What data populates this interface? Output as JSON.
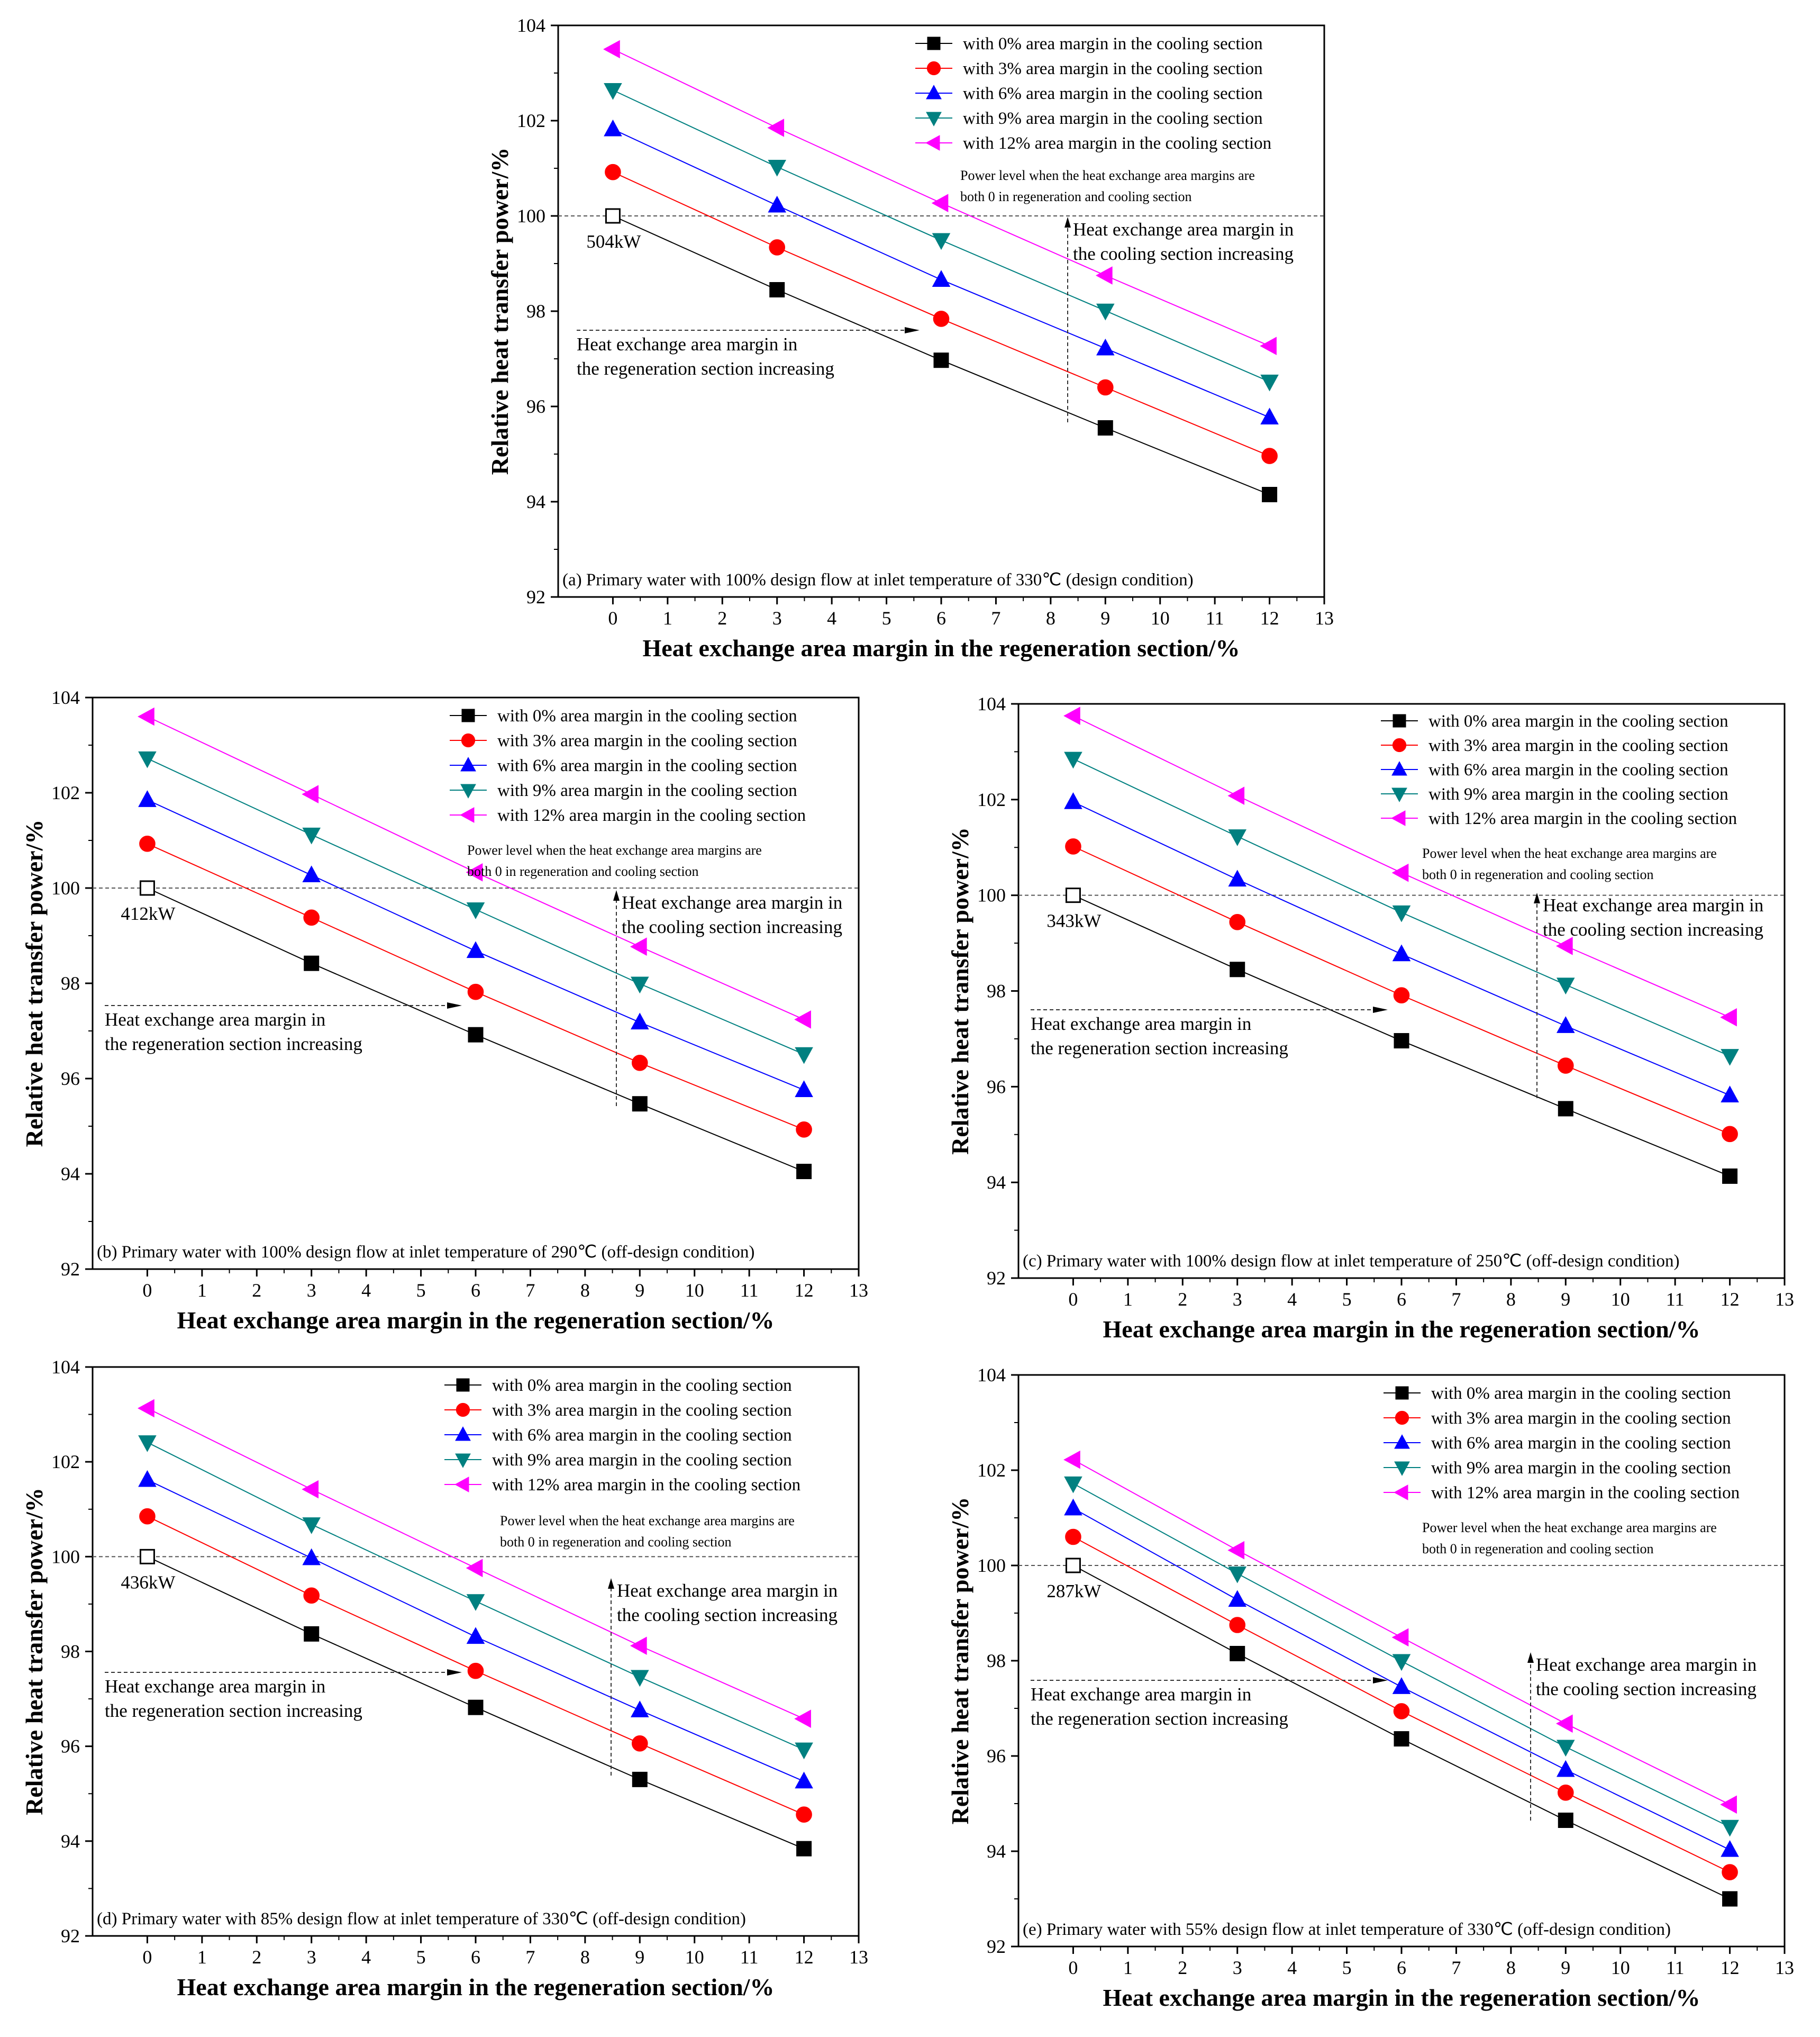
{
  "common": {
    "xlabel": "Heat exchange area margin in the regeneration section/%",
    "ylabel": "Relative heat transfer power/%",
    "xticks": [
      "0",
      "1",
      "2",
      "3",
      "4",
      "5",
      "6",
      "7",
      "8",
      "9",
      "10",
      "11",
      "12",
      "13"
    ],
    "yticks": [
      "92",
      "94",
      "96",
      "98",
      "100",
      "102",
      "104"
    ],
    "legend": [
      "with 0% area margin in the cooling section",
      "with 3% area margin in the cooling section",
      "with 6% area margin in the cooling section",
      "with 9% area margin in the cooling section",
      "with 12% area margin in the cooling section"
    ],
    "power_note_line1": "Power level when the heat exchange area margins are",
    "power_note_line2": "both 0 in regeneration and cooling section",
    "cooling_note_line1": "Heat exchange area margin in",
    "cooling_note_line2": "the cooling section increasing",
    "regen_note_line1": "Heat exchange area margin in",
    "regen_note_line2": "the regeneration section increasing",
    "colors": [
      "#000000",
      "#ff0000",
      "#0000ff",
      "#008080",
      "#ff00ff"
    ],
    "markers": [
      "square",
      "circle",
      "triangle-up",
      "triangle-down",
      "triangle-left"
    ]
  },
  "chart_data": [
    {
      "id": "a",
      "type": "line",
      "caption": "(a) Primary water with 100% design flow at inlet temperature of 330℃ (design condition)",
      "base_label": "504kW",
      "xlabel": "Heat exchange area margin in the regeneration section/%",
      "ylabel": "Relative heat transfer power/%",
      "xlim": [
        -1,
        13
      ],
      "ylim": [
        92,
        104
      ],
      "x": [
        0,
        3,
        6,
        9,
        12
      ],
      "series": [
        {
          "name": "with 0% area margin in the cooling section",
          "values": [
            100.0,
            98.45,
            96.97,
            95.55,
            94.15
          ]
        },
        {
          "name": "with 3% area margin in the cooling section",
          "values": [
            100.92,
            99.34,
            97.84,
            96.4,
            94.96
          ]
        },
        {
          "name": "with 6% area margin in the cooling section",
          "values": [
            101.82,
            100.22,
            98.66,
            97.22,
            95.77
          ]
        },
        {
          "name": "with 9% area margin in the cooling section",
          "values": [
            102.64,
            101.03,
            99.49,
            98.01,
            96.52
          ]
        },
        {
          "name": "with 12% area margin in the cooling section",
          "values": [
            103.5,
            101.85,
            100.27,
            98.75,
            97.27
          ]
        }
      ]
    },
    {
      "id": "b",
      "type": "line",
      "caption": "(b) Primary water with 100% design flow at inlet temperature of 290℃ (off-design condition)",
      "base_label": "412kW",
      "xlabel": "Heat exchange area margin in the regeneration section/%",
      "ylabel": "Relative heat transfer power/%",
      "xlim": [
        -1,
        13
      ],
      "ylim": [
        92,
        104
      ],
      "x": [
        0,
        3,
        6,
        9,
        12
      ],
      "series": [
        {
          "name": "with 0% area margin in the cooling section",
          "values": [
            100.0,
            98.42,
            96.92,
            95.47,
            94.05
          ]
        },
        {
          "name": "with 3% area margin in the cooling section",
          "values": [
            100.93,
            99.38,
            97.82,
            96.33,
            94.93
          ]
        },
        {
          "name": "with 6% area margin in the cooling section",
          "values": [
            101.85,
            100.27,
            98.68,
            97.18,
            95.76
          ]
        },
        {
          "name": "with 9% area margin in the cooling section",
          "values": [
            102.72,
            101.12,
            99.55,
            97.99,
            96.51
          ]
        },
        {
          "name": "with 12% area margin in the cooling section",
          "values": [
            103.6,
            101.97,
            100.33,
            98.77,
            97.24
          ]
        }
      ]
    },
    {
      "id": "c",
      "type": "line",
      "caption": "(c) Primary water with 100% design flow at inlet temperature of 250℃ (off-design condition)",
      "base_label": "343kW",
      "xlabel": "Heat exchange area margin in the regeneration section/%",
      "ylabel": "Relative heat transfer power/%",
      "xlim": [
        -1,
        13
      ],
      "ylim": [
        92,
        104
      ],
      "x": [
        0,
        3,
        6,
        9,
        12
      ],
      "series": [
        {
          "name": "with 0% area margin in the cooling section",
          "values": [
            100.0,
            98.45,
            96.96,
            95.54,
            94.13
          ]
        },
        {
          "name": "with 3% area margin in the cooling section",
          "values": [
            101.02,
            99.44,
            97.91,
            96.44,
            95.01
          ]
        },
        {
          "name": "with 6% area margin in the cooling section",
          "values": [
            101.95,
            100.33,
            98.77,
            97.27,
            95.82
          ]
        },
        {
          "name": "with 9% area margin in the cooling section",
          "values": [
            102.85,
            101.23,
            99.64,
            98.13,
            96.64
          ]
        },
        {
          "name": "with 12% area margin in the cooling section",
          "values": [
            103.75,
            102.08,
            100.47,
            98.94,
            97.45
          ]
        }
      ]
    },
    {
      "id": "d",
      "type": "line",
      "caption": "(d) Primary water with 85% design flow at inlet temperature of 330℃ (off-design condition)",
      "base_label": "436kW",
      "xlabel": "Heat exchange area margin in the regeneration section/%",
      "ylabel": "Relative heat transfer power/%",
      "xlim": [
        -1,
        13
      ],
      "ylim": [
        92,
        104
      ],
      "x": [
        0,
        3,
        6,
        9,
        12
      ],
      "series": [
        {
          "name": "with 0% area margin in the cooling section",
          "values": [
            100.0,
            98.37,
            96.82,
            95.3,
            93.84
          ]
        },
        {
          "name": "with 3% area margin in the cooling section",
          "values": [
            100.85,
            99.18,
            97.59,
            96.06,
            94.56
          ]
        },
        {
          "name": "with 6% area margin in the cooling section",
          "values": [
            101.62,
            99.97,
            98.31,
            96.76,
            95.26
          ]
        },
        {
          "name": "with 9% area margin in the cooling section",
          "values": [
            102.41,
            100.68,
            99.06,
            97.46,
            95.93
          ]
        },
        {
          "name": "with 12% area margin in the cooling section",
          "values": [
            103.13,
            101.42,
            99.76,
            98.12,
            96.58
          ]
        }
      ]
    },
    {
      "id": "e",
      "type": "line",
      "caption": "(e) Primary water with 55% design flow at inlet temperature of 330℃ (off-design condition)",
      "base_label": "287kW",
      "xlabel": "Heat exchange area margin in the regeneration section/%",
      "ylabel": "Relative heat transfer power/%",
      "xlim": [
        -1,
        13
      ],
      "ylim": [
        92,
        104
      ],
      "x": [
        0,
        3,
        6,
        9,
        12
      ],
      "series": [
        {
          "name": "with 0% area margin in the cooling section",
          "values": [
            100.0,
            98.15,
            96.36,
            94.65,
            93.0
          ]
        },
        {
          "name": "with 3% area margin in the cooling section",
          "values": [
            100.6,
            98.75,
            96.94,
            95.23,
            93.56
          ]
        },
        {
          "name": "with 6% area margin in the cooling section",
          "values": [
            101.2,
            99.28,
            97.45,
            95.71,
            94.03
          ]
        },
        {
          "name": "with 9% area margin in the cooling section",
          "values": [
            101.72,
            99.83,
            97.99,
            96.19,
            94.51
          ]
        },
        {
          "name": "with 12% area margin in the cooling section",
          "values": [
            102.22,
            100.32,
            98.49,
            96.68,
            94.98
          ]
        }
      ]
    }
  ]
}
